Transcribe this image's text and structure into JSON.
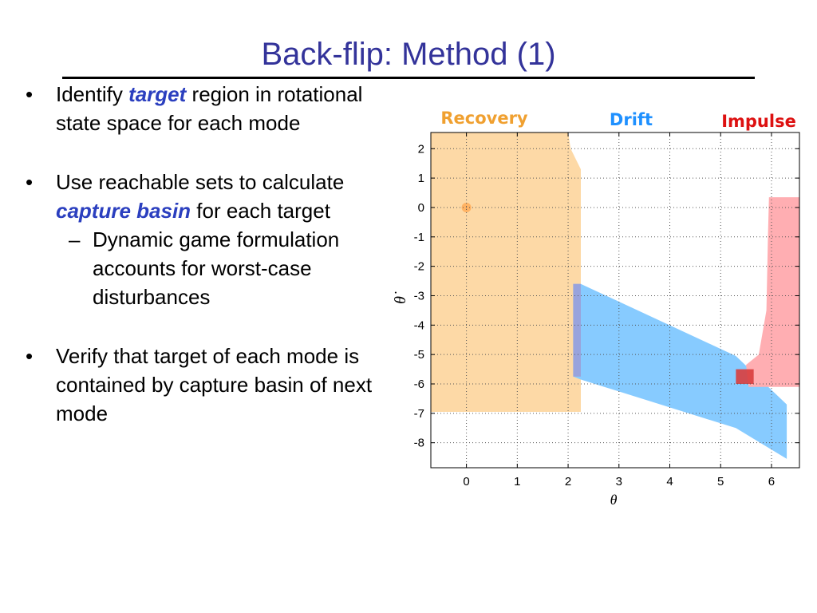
{
  "slide": {
    "title": "Back-flip: Method (1)"
  },
  "bullets": [
    {
      "marker": "•",
      "pre": "Identify ",
      "emph": "target",
      "post": " region in rotational state space for each mode"
    },
    {
      "marker": "•",
      "pre": "Use reachable sets to calculate ",
      "emph": "capture basin",
      "post": " for each target",
      "sub": {
        "marker": "–",
        "text": "Dynamic game formulation accounts for worst-case disturbances"
      }
    },
    {
      "marker": "•",
      "text": "Verify that target of each mode is contained by capture basin of next mode"
    }
  ],
  "chart_data": {
    "type": "area",
    "xlabel": "θ",
    "ylabel": "θ̇",
    "xlim": [
      -0.7,
      6.55
    ],
    "ylim": [
      -8.85,
      2.55
    ],
    "xticks": [
      0,
      1,
      2,
      3,
      4,
      5,
      6
    ],
    "yticks": [
      2,
      1,
      0,
      -1,
      -2,
      -3,
      -4,
      -5,
      -6,
      -7,
      -8
    ],
    "grid": true,
    "mode_labels": [
      {
        "text": "Recovery",
        "color": "#f0a030"
      },
      {
        "text": "Drift",
        "color": "#1e90ff"
      },
      {
        "text": "Impulse",
        "color": "#dd1111"
      }
    ],
    "regions": [
      {
        "mode": "Recovery",
        "kind": "capture-basin",
        "color": "#fdd9a6",
        "points": [
          [
            -0.7,
            2.55
          ],
          [
            2.0,
            2.55
          ],
          [
            2.05,
            2.0
          ],
          [
            2.25,
            1.3
          ],
          [
            2.25,
            -6.95
          ],
          [
            -0.7,
            -6.95
          ]
        ]
      },
      {
        "mode": "Drift",
        "kind": "capture-basin",
        "color": "#87cbff",
        "points": [
          [
            2.1,
            -2.6
          ],
          [
            2.25,
            -2.6
          ],
          [
            5.3,
            -5.05
          ],
          [
            6.3,
            -6.7
          ],
          [
            6.3,
            -8.55
          ],
          [
            5.3,
            -7.5
          ],
          [
            2.25,
            -5.85
          ],
          [
            2.1,
            -5.75
          ]
        ]
      },
      {
        "mode": "Impulse",
        "kind": "capture-basin",
        "color": "#ffaeb2",
        "points": [
          [
            5.95,
            0.35
          ],
          [
            6.6,
            0.35
          ],
          [
            6.6,
            -6.1
          ],
          [
            5.55,
            -6.1
          ],
          [
            5.5,
            -5.35
          ],
          [
            5.75,
            -5.0
          ],
          [
            5.9,
            -3.5
          ],
          [
            5.93,
            -1.0
          ]
        ]
      }
    ],
    "targets": [
      {
        "mode": "Recovery",
        "shape": "circle",
        "x": 0.0,
        "y": 0.0,
        "color": "#ffa64d"
      },
      {
        "mode": "Drift",
        "shape": "rect",
        "x": [
          2.1,
          2.25
        ],
        "y": [
          -5.75,
          -2.6
        ],
        "color": "#9b9fd8"
      },
      {
        "mode": "Impulse",
        "shape": "rect",
        "x": [
          5.3,
          5.65
        ],
        "y": [
          -6.0,
          -5.5
        ],
        "color": "#d93d3d"
      }
    ]
  }
}
